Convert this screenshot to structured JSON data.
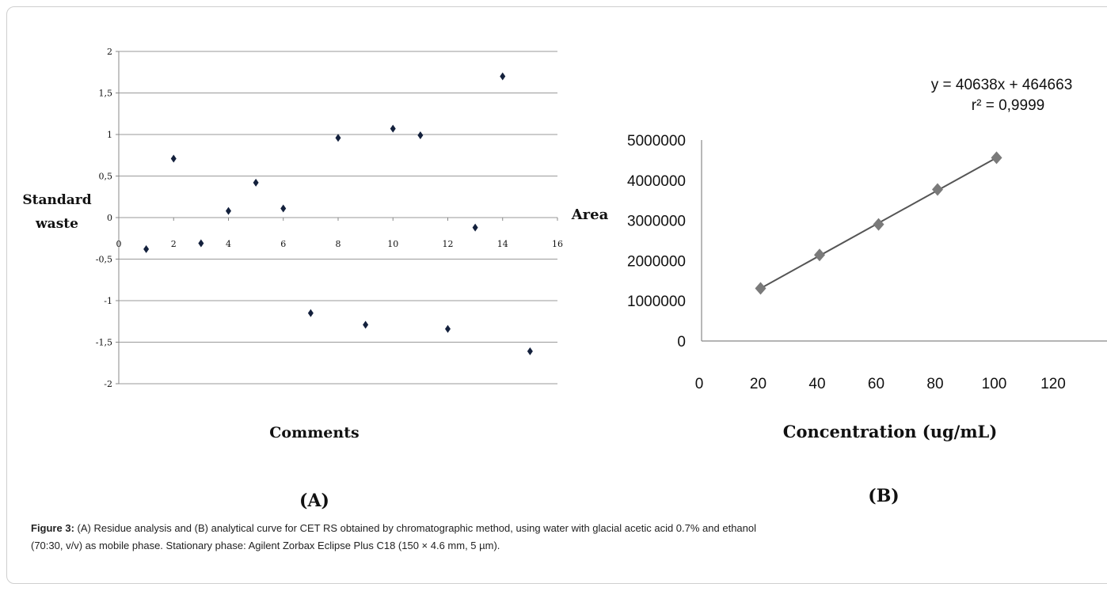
{
  "chart_data": [
    {
      "type": "scatter",
      "panel_label": "(A)",
      "xlabel": "Comments",
      "ylabel": [
        "Standard",
        "waste"
      ],
      "xlim": [
        0,
        16
      ],
      "ylim": [
        -2,
        2
      ],
      "xticks": [
        "0",
        "2",
        "4",
        "6",
        "8",
        "10",
        "12",
        "14",
        "16"
      ],
      "yticks": [
        "2",
        "1,5",
        "1",
        "0,5",
        "0",
        "-0,5",
        "-1",
        "-1,5",
        "-2"
      ],
      "ytick_values": [
        2,
        1.5,
        1,
        0.5,
        0,
        -0.5,
        -1,
        -1.5,
        -2
      ],
      "grid": true,
      "x": [
        1,
        2,
        3,
        4,
        5,
        6,
        7,
        8,
        9,
        10,
        11,
        12,
        13,
        14,
        15
      ],
      "y": [
        -0.38,
        0.71,
        -0.31,
        0.08,
        0.42,
        0.11,
        -1.15,
        0.96,
        -1.29,
        1.07,
        0.99,
        -1.34,
        -0.12,
        1.7,
        -1.61
      ]
    },
    {
      "type": "line",
      "panel_label": "(B)",
      "xlabel": "Concentration (ug/mL)",
      "ylabel": "Area",
      "xlim": [
        0,
        120
      ],
      "ylim": [
        0,
        5000000
      ],
      "xticks": [
        "0",
        "20",
        "40",
        "60",
        "80",
        "100",
        "120"
      ],
      "yticks": [
        "5000000",
        "4000000",
        "3000000",
        "2000000",
        "1000000",
        "0"
      ],
      "ytick_values": [
        5000000,
        4000000,
        3000000,
        2000000,
        1000000,
        0
      ],
      "grid": false,
      "x": [
        20,
        40,
        60,
        80,
        100
      ],
      "y": [
        1310000,
        2140000,
        2900000,
        3770000,
        4560000
      ],
      "equation": "y = 40638x + 464663",
      "r_squared": "r² = 0,9999"
    }
  ],
  "caption": {
    "label": "Figure 3:",
    "line1": " (A) Residue analysis and (B) analytical curve for CET RS obtained by chromatographic method, using water with glacial acetic acid 0.7% and ethanol",
    "line2": "(70:30, v/v) as mobile phase. Stationary phase: Agilent Zorbax Eclipse Plus C18 (150 × 4.6 mm, 5 µm)."
  }
}
